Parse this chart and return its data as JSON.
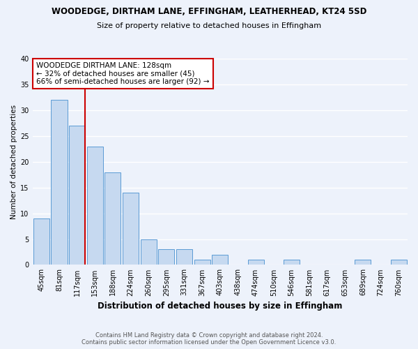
{
  "title": "WOODEDGE, DIRTHAM LANE, EFFINGHAM, LEATHERHEAD, KT24 5SD",
  "subtitle": "Size of property relative to detached houses in Effingham",
  "xlabel": "Distribution of detached houses by size in Effingham",
  "ylabel": "Number of detached properties",
  "bin_labels": [
    "45sqm",
    "81sqm",
    "117sqm",
    "153sqm",
    "188sqm",
    "224sqm",
    "260sqm",
    "295sqm",
    "331sqm",
    "367sqm",
    "403sqm",
    "438sqm",
    "474sqm",
    "510sqm",
    "546sqm",
    "581sqm",
    "617sqm",
    "653sqm",
    "689sqm",
    "724sqm",
    "760sqm"
  ],
  "bar_heights": [
    9,
    32,
    27,
    23,
    18,
    14,
    5,
    3,
    3,
    1,
    2,
    0,
    1,
    0,
    1,
    0,
    0,
    0,
    1,
    0,
    1
  ],
  "bar_color": "#c6d9f0",
  "bar_edge_color": "#5b9bd5",
  "vline_x_index": 2,
  "vline_color": "#cc0000",
  "ylim": [
    0,
    40
  ],
  "yticks": [
    0,
    5,
    10,
    15,
    20,
    25,
    30,
    35,
    40
  ],
  "annotation_title": "WOODEDGE DIRTHAM LANE: 128sqm",
  "annotation_line1": "← 32% of detached houses are smaller (45)",
  "annotation_line2": "66% of semi-detached houses are larger (92) →",
  "annotation_box_color": "#ffffff",
  "annotation_box_edge": "#cc0000",
  "footer_line1": "Contains HM Land Registry data © Crown copyright and database right 2024.",
  "footer_line2": "Contains public sector information licensed under the Open Government Licence v3.0.",
  "background_color": "#edf2fb",
  "grid_color": "#ffffff",
  "title_fontsize": 8.5,
  "subtitle_fontsize": 8.0,
  "xlabel_fontsize": 8.5,
  "ylabel_fontsize": 7.5,
  "tick_fontsize": 7.0,
  "annotation_fontsize": 7.5,
  "footer_fontsize": 6.0
}
